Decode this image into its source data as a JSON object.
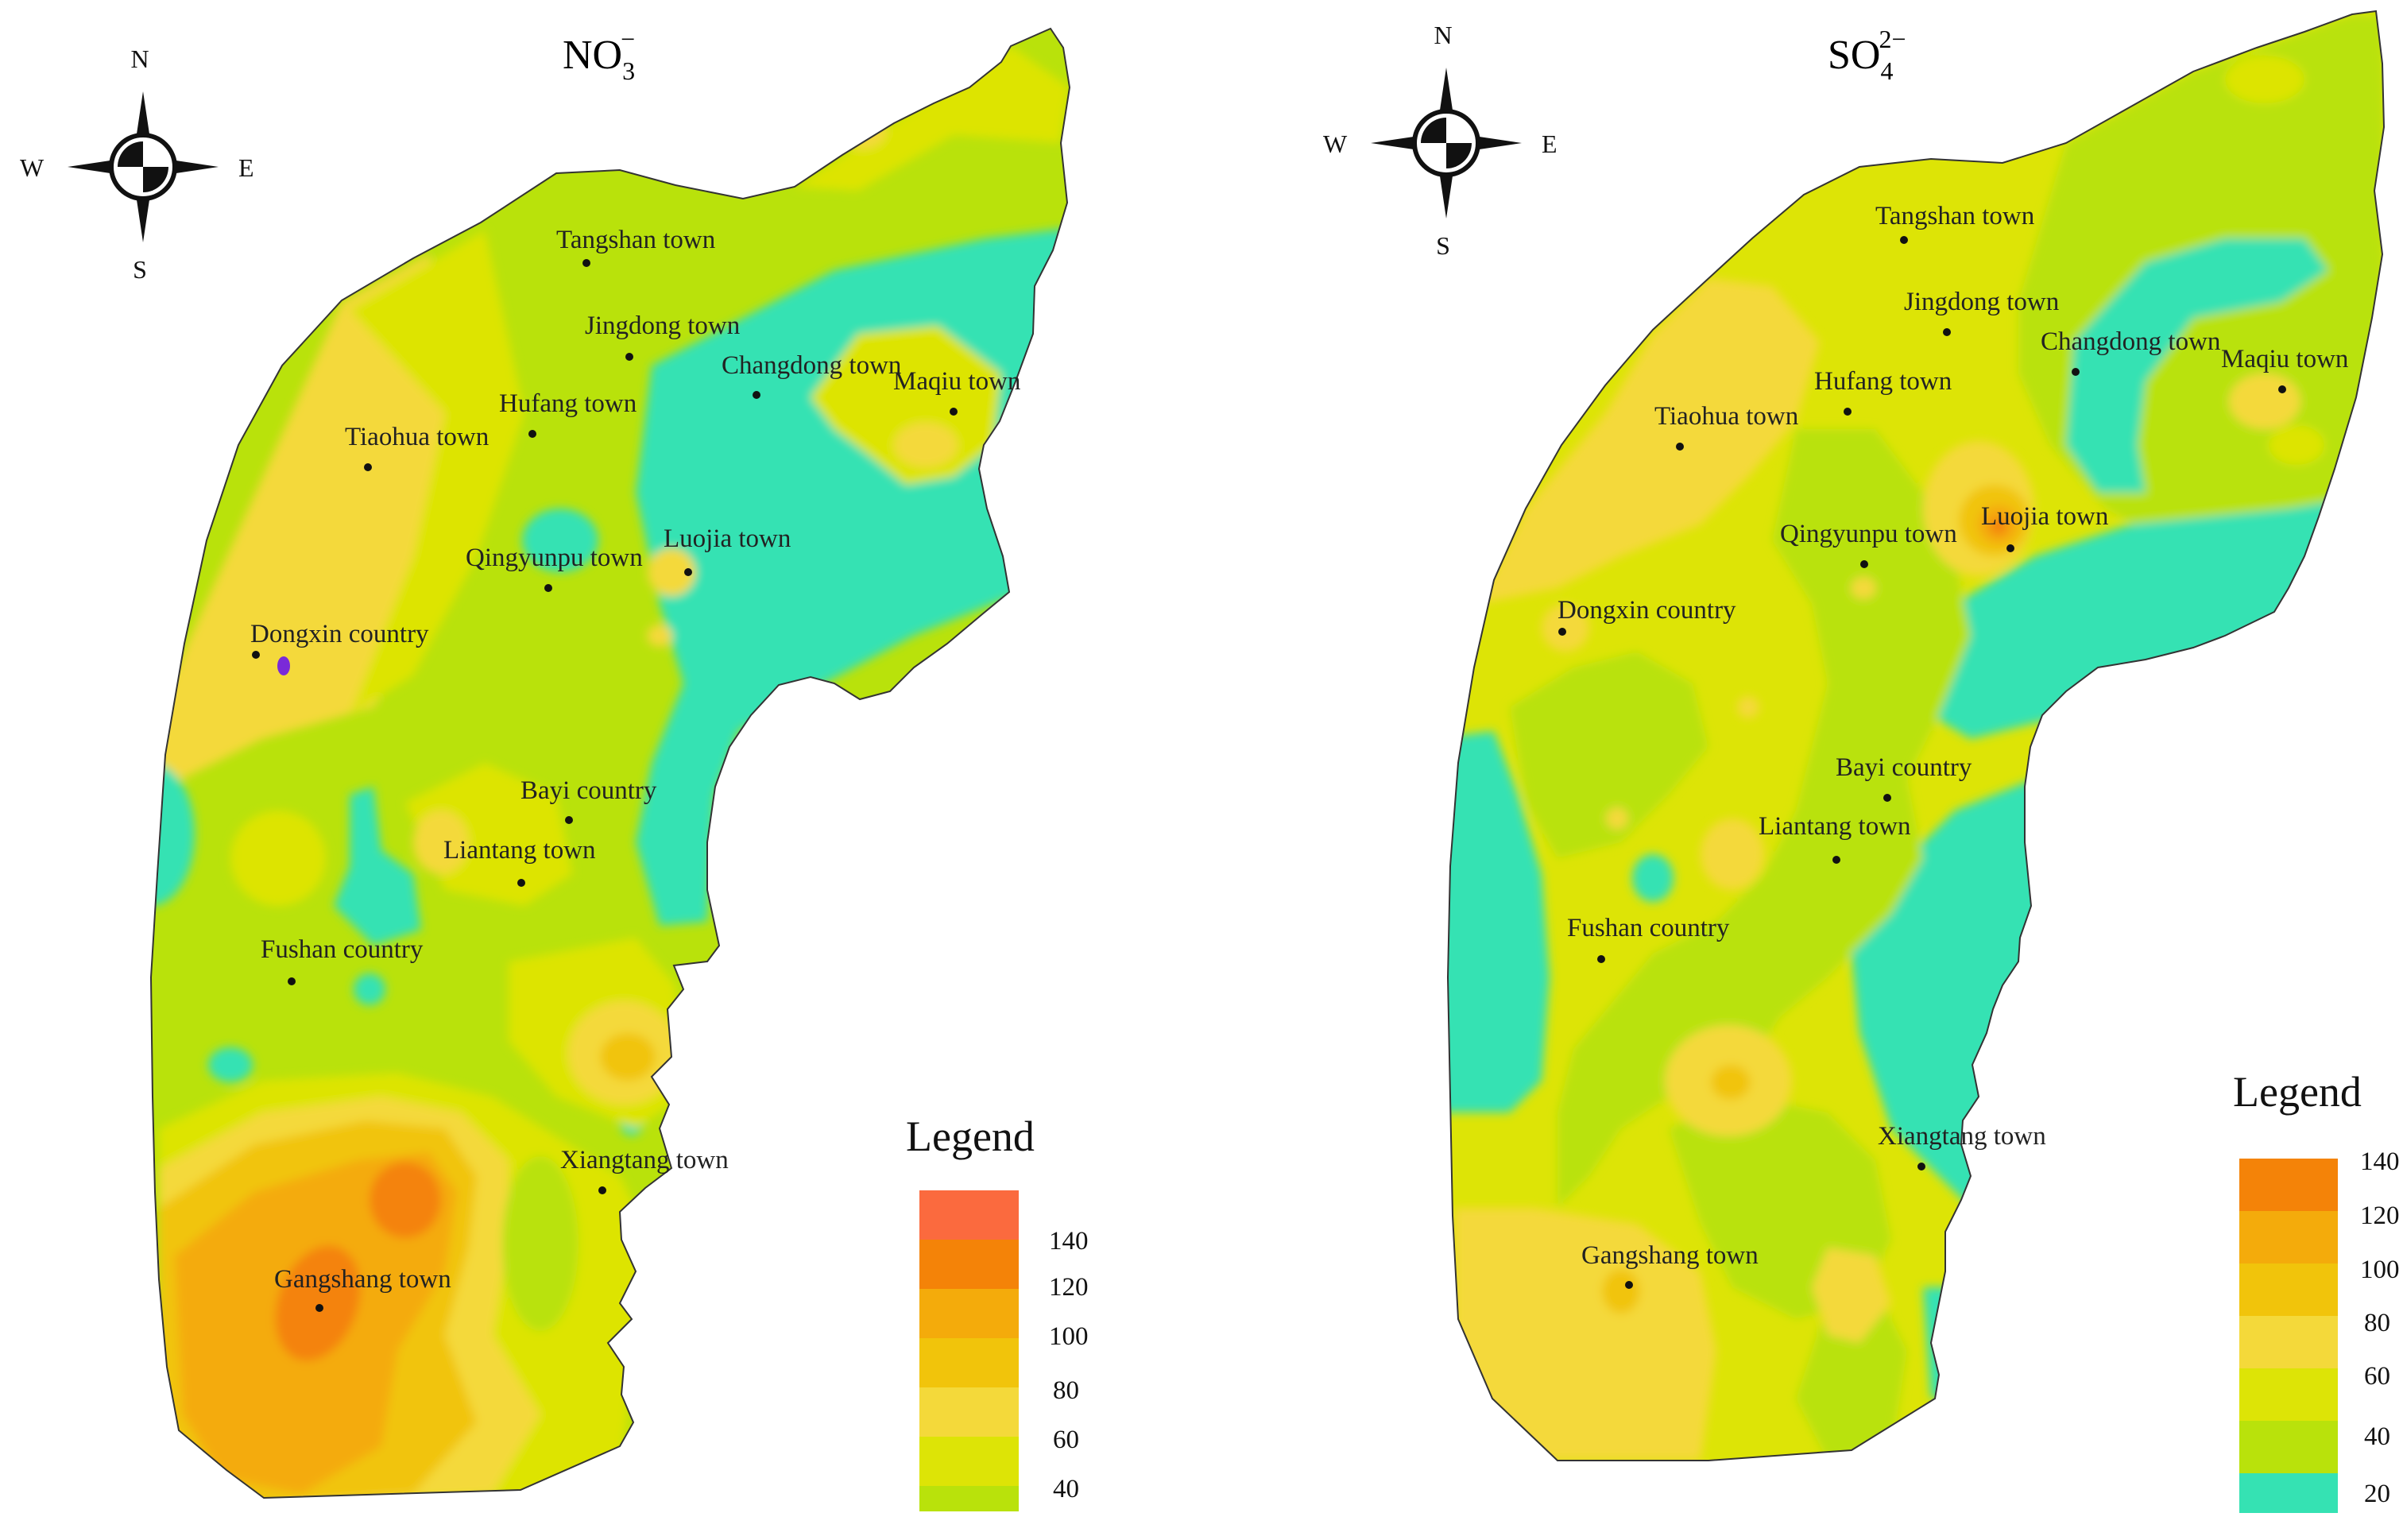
{
  "colors": {
    "c20": "#35e2b3",
    "c40": "#b9e20b",
    "c50": "#dde406",
    "c60": "#f4d93a",
    "c80": "#f1c40b",
    "c100": "#f4ab0b",
    "c120": "#f48308",
    "c140": "#fb6a3e",
    "purple": "#7a2ad8",
    "outline": "#333333"
  },
  "compass": {
    "n": "N",
    "s": "S",
    "e": "E",
    "w": "W"
  },
  "panels": [
    {
      "id": "no3",
      "title": {
        "base": "NO",
        "sub": "3",
        "sup": "−"
      },
      "places": [
        "Tangshan town",
        "Jingdong town",
        "Changdong town",
        "Hufang town",
        "Maqiu town",
        "Tiaohua town",
        "Qingyunpu town",
        "Luojia town",
        "Dongxin country",
        "Bayi country",
        "Liantang town",
        "Fushan country",
        "Xiangtang town",
        "Gangshang town"
      ],
      "legend": {
        "title": "Legend",
        "ticks": [
          "140",
          "120",
          "100",
          "80",
          "60",
          "40"
        ],
        "bands": [
          "c140",
          "c120",
          "c100",
          "c80",
          "c60",
          "c50",
          "c40"
        ]
      }
    },
    {
      "id": "so4",
      "title": {
        "base": "SO",
        "sub": "4",
        "sup": "2−"
      },
      "places": [
        "Tangshan town",
        "Jingdong town",
        "Changdong town",
        "Maqiu town",
        "Hufang town",
        "Tiaohua town",
        "Luojia town",
        "Qingyunpu town",
        "Dongxin country",
        "Bayi country",
        "Liantang town",
        "Fushan country",
        "Xiangtang town",
        "Gangshang town"
      ],
      "legend": {
        "title": "Legend",
        "ticks": [
          "140",
          "120",
          "100",
          "80",
          "60",
          "40",
          "20"
        ],
        "bands": [
          "c120",
          "c100",
          "c80",
          "c60",
          "c50",
          "c40",
          "c20"
        ]
      }
    }
  ]
}
